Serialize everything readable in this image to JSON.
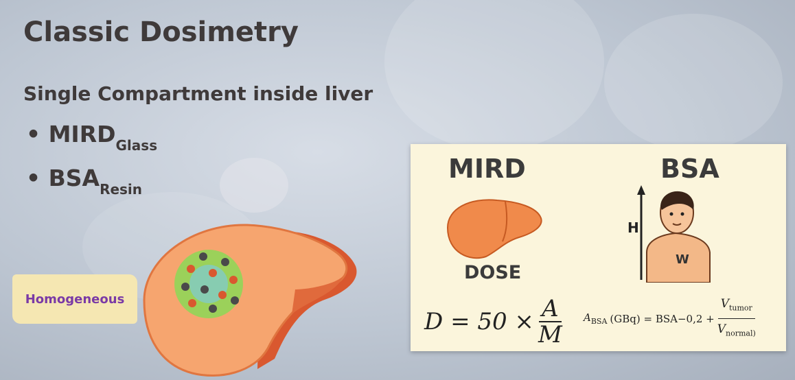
{
  "slide": {
    "title": "Classic Dosimetry",
    "subtitle": "Single Compartment inside liver",
    "bullets": [
      {
        "main": "MIRD",
        "sub": "Glass"
      },
      {
        "main": "BSA",
        "sub": "Resin"
      }
    ],
    "homogeneous_label": "Homogeneous"
  },
  "panel": {
    "mird_title": "MIRD",
    "bsa_title": "BSA",
    "dose_label": "DOSE",
    "height_label": "H",
    "weight_label": "W",
    "formula_mird": {
      "lhs": "D = 50 ×",
      "numerator": "A",
      "denominator": "M"
    },
    "formula_bsa": {
      "lhs": "A",
      "lhs_sub": "BSA",
      "middle": "(GBq) = BSA−0,2 +",
      "numerator": "V",
      "numerator_sub": "tumor",
      "denominator": "V",
      "denominator_sub": "normal)"
    }
  },
  "colors": {
    "text_dark": "#3f3a3a",
    "homogeneous_text": "#7a3aa6",
    "homogeneous_bg": "#f5e7b2",
    "liver_orange": "#f08a4b",
    "liver_dark": "#d9582f",
    "tumor_green": "#9bd15a",
    "panel_bg": "#fbf5dc"
  }
}
